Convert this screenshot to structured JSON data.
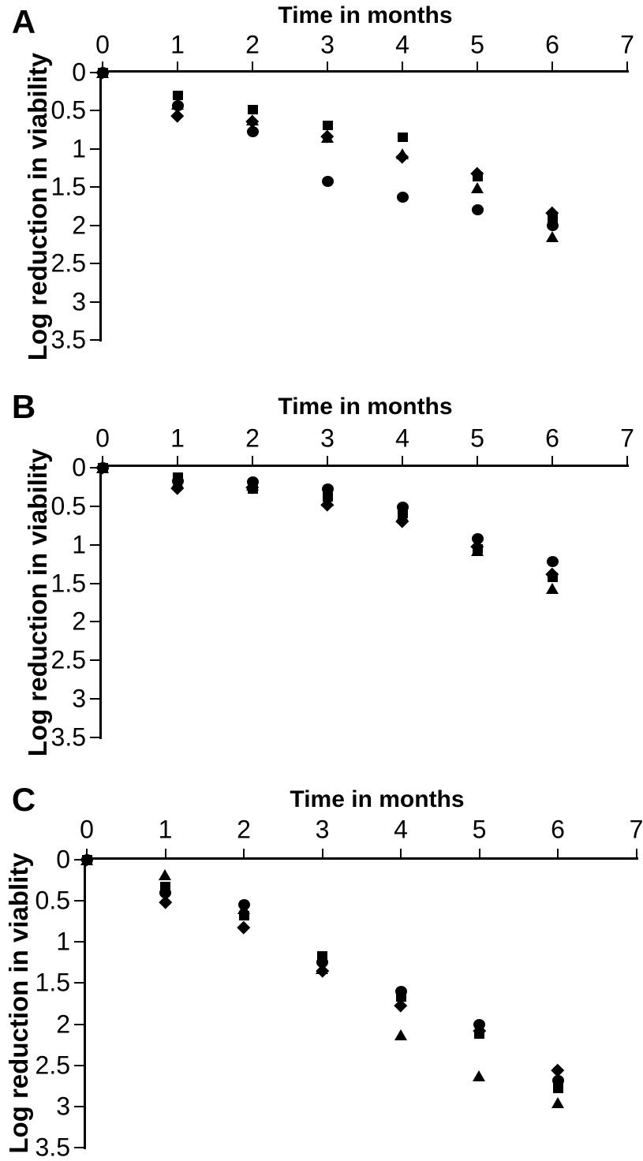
{
  "figure": {
    "panels": [
      {
        "label": "A",
        "title": "Time in months",
        "ylabel": "Log reduction in viability",
        "x_tick_labels": [
          "0",
          "1",
          "2",
          "3",
          "4",
          "5",
          "6",
          "7"
        ],
        "y_tick_labels": [
          "0",
          "0.5",
          "1",
          "1.5",
          "2",
          "2.5",
          "3",
          "3.5"
        ]
      },
      {
        "label": "B",
        "title": "Time in months",
        "ylabel": "Log reduction in viability",
        "x_tick_labels": [
          "0",
          "1",
          "2",
          "3",
          "4",
          "5",
          "6",
          "7"
        ],
        "y_tick_labels": [
          "0",
          "0.5",
          "1",
          "1.5",
          "2",
          "2.5",
          "3",
          "3.5"
        ]
      },
      {
        "label": "C",
        "title": "Time in months",
        "ylabel": "Log reduction in viablity",
        "x_tick_labels": [
          "0",
          "1",
          "2",
          "3",
          "4",
          "5",
          "6",
          "7"
        ],
        "y_tick_labels": [
          "0",
          "0.5",
          "1",
          "1.5",
          "2",
          "2.5",
          "3",
          "3.5"
        ]
      }
    ]
  },
  "chart_data": [
    {
      "panel": "A",
      "type": "scatter",
      "title": "Time in months",
      "xlabel": "Time in months",
      "ylabel": "Log reduction in viability",
      "xlim": [
        0,
        7
      ],
      "ylim": [
        0,
        3.5
      ],
      "y_axis_inverted": true,
      "x_axis_position": "top",
      "grid": false,
      "legend": "none",
      "x": [
        0,
        1,
        2,
        3,
        4,
        5,
        6
      ],
      "series": [
        {
          "name": "square",
          "marker": "square",
          "color": "#000000",
          "values": [
            0,
            0.3,
            0.48,
            0.69,
            0.85,
            1.36,
            1.9
          ]
        },
        {
          "name": "circle",
          "marker": "circle",
          "color": "#000000",
          "values": [
            0,
            0.43,
            0.77,
            1.42,
            1.63,
            1.8,
            2.0
          ]
        },
        {
          "name": "triangle",
          "marker": "triangle",
          "color": "#000000",
          "values": [
            0,
            0.42,
            0.62,
            0.85,
            1.07,
            1.51,
            2.15
          ]
        },
        {
          "name": "diamond",
          "marker": "diamond",
          "color": "#000000",
          "values": [
            0,
            0.57,
            0.64,
            0.83,
            1.1,
            1.32,
            1.83
          ]
        }
      ]
    },
    {
      "panel": "B",
      "type": "scatter",
      "title": "Time in months",
      "xlabel": "Time in months",
      "ylabel": "Log reduction in viability",
      "xlim": [
        0,
        7
      ],
      "ylim": [
        0,
        3.5
      ],
      "y_axis_inverted": true,
      "x_axis_position": "top",
      "grid": false,
      "legend": "none",
      "x": [
        0,
        1,
        2,
        3,
        4,
        5,
        6
      ],
      "series": [
        {
          "name": "square",
          "marker": "square",
          "color": "#000000",
          "values": [
            0,
            0.12,
            0.28,
            0.38,
            0.59,
            1.05,
            1.42
          ]
        },
        {
          "name": "circle",
          "marker": "circle",
          "color": "#000000",
          "values": [
            0,
            0.17,
            0.18,
            0.28,
            0.51,
            0.92,
            1.22
          ]
        },
        {
          "name": "triangle",
          "marker": "triangle",
          "color": "#000000",
          "values": [
            0,
            0.2,
            0.23,
            0.43,
            0.63,
            1.08,
            1.57
          ]
        },
        {
          "name": "diamond",
          "marker": "diamond",
          "color": "#000000",
          "values": [
            0,
            0.26,
            0.25,
            0.48,
            0.69,
            1.02,
            1.38
          ]
        }
      ]
    },
    {
      "panel": "C",
      "type": "scatter",
      "title": "Time in months",
      "xlabel": "Time in months",
      "ylabel": "Log reduction in viablity",
      "xlim": [
        0,
        7
      ],
      "ylim": [
        0,
        3.5
      ],
      "y_axis_inverted": true,
      "x_axis_position": "top",
      "grid": false,
      "legend": "none",
      "x": [
        0,
        1,
        2,
        3,
        4,
        5,
        6
      ],
      "series": [
        {
          "name": "square",
          "marker": "square",
          "color": "#000000",
          "values": [
            0,
            0.33,
            0.68,
            1.17,
            1.67,
            2.12,
            2.78
          ]
        },
        {
          "name": "circle",
          "marker": "circle",
          "color": "#000000",
          "values": [
            0,
            0.4,
            0.55,
            1.25,
            1.6,
            2.0,
            2.68
          ]
        },
        {
          "name": "triangle",
          "marker": "triangle",
          "color": "#000000",
          "values": [
            0,
            0.19,
            0.6,
            1.33,
            2.13,
            2.63,
            2.96
          ]
        },
        {
          "name": "diamond",
          "marker": "diamond",
          "color": "#000000",
          "values": [
            0,
            0.52,
            0.82,
            1.35,
            1.77,
            2.08,
            2.56
          ]
        }
      ]
    }
  ]
}
